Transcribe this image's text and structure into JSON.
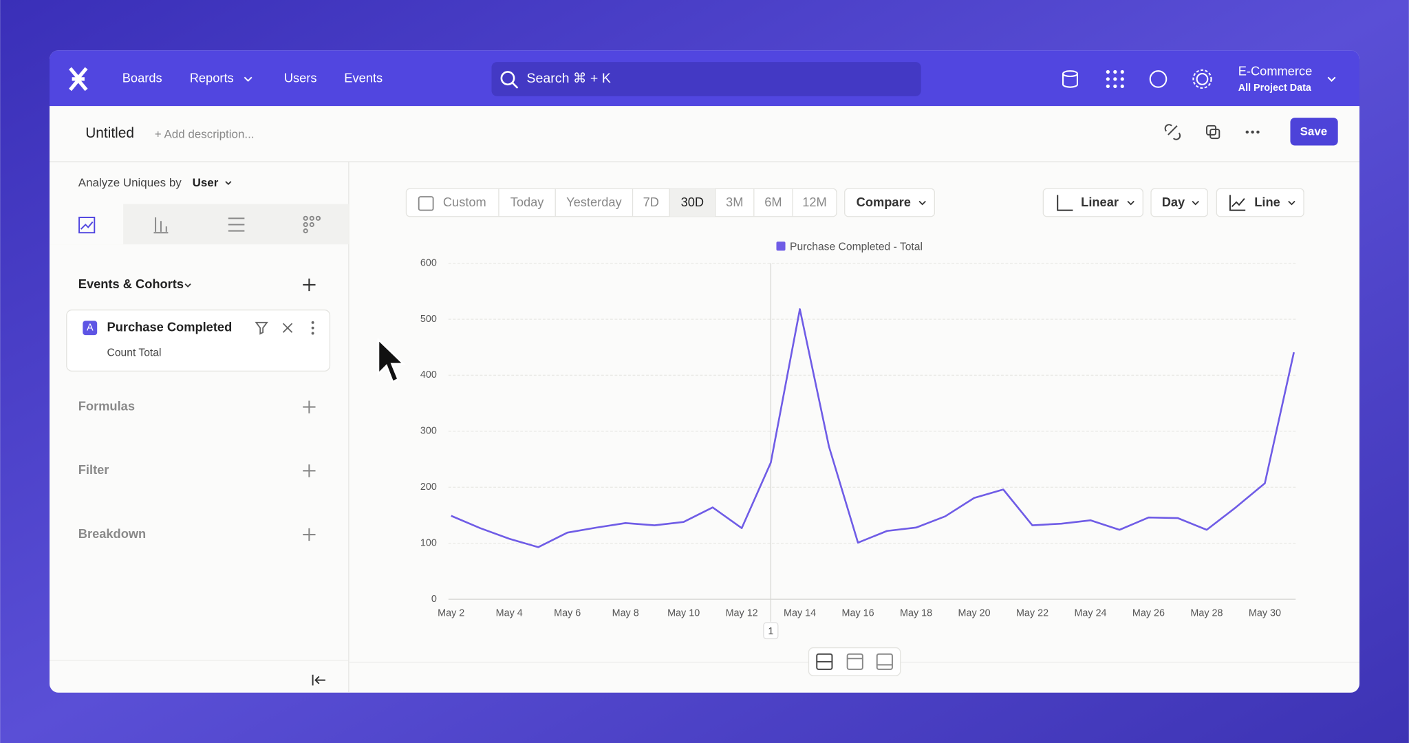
{
  "nav": {
    "items": [
      "Boards",
      "Reports",
      "Users",
      "Events"
    ],
    "search": "Search ⌘ + K",
    "project": "E-Commerce",
    "project_sub": "All Project Data"
  },
  "header": {
    "title": "Untitled",
    "description": "+ Add description...",
    "save": "Save"
  },
  "sidebar": {
    "analyze_label": "Analyze Uniques by",
    "analyze_value": "User",
    "events_title": "Events & Cohorts",
    "event": {
      "badge": "A",
      "name": "Purchase Completed",
      "measure": "Count Total"
    },
    "sections": [
      "Formulas",
      "Filter",
      "Breakdown"
    ]
  },
  "toolbar": {
    "ranges": [
      "Custom",
      "Today",
      "Yesterday",
      "7D",
      "30D",
      "3M",
      "6M",
      "12M"
    ],
    "compare": "Compare",
    "scale": "Linear",
    "interval": "Day",
    "chart_type": "Line"
  },
  "chart_data": {
    "type": "line",
    "categories": [
      "May 2",
      null,
      "May 4",
      null,
      "May 6",
      null,
      "May 8",
      null,
      "May 10",
      null,
      "May 12",
      null,
      "May 14",
      null,
      "May 16",
      null,
      "May 18",
      null,
      "May 20",
      null,
      "May 22",
      null,
      "May 24",
      null,
      "May 26",
      null,
      "May 28",
      null,
      "May 30",
      null
    ],
    "series": [
      {
        "name": "Purchase Completed - Total",
        "color": "#6f5ce6",
        "values": [
          149,
          127,
          108,
          93,
          119,
          128,
          136,
          132,
          138,
          164,
          127,
          244,
          518,
          273,
          101,
          122,
          128,
          148,
          181,
          196,
          132,
          135,
          141,
          124,
          146,
          145,
          124,
          164,
          207,
          441
        ]
      }
    ],
    "ylim": [
      0,
      600
    ],
    "yticks": [
      0,
      100,
      200,
      300,
      400,
      500,
      600
    ],
    "grid": true,
    "annotation": "1"
  }
}
